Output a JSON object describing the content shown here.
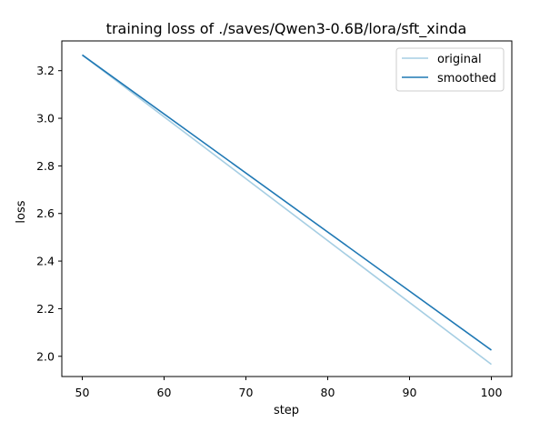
{
  "chart_data": {
    "type": "line",
    "title": "training loss of ./saves/Qwen3-0.6B/lora/sft_xinda",
    "xlabel": "step",
    "ylabel": "loss",
    "xlim": [
      47.5,
      102.5
    ],
    "ylim": [
      1.915,
      3.325
    ],
    "xticks": [
      50,
      60,
      70,
      80,
      90,
      100
    ],
    "yticks": [
      2.0,
      2.2,
      2.4,
      2.6,
      2.8,
      3.0,
      3.2
    ],
    "grid": false,
    "legend_position": "top-right",
    "series": [
      {
        "name": "original",
        "color": "#a6cee3",
        "x": [
          50,
          100
        ],
        "y": [
          3.266,
          1.966
        ]
      },
      {
        "name": "smoothed",
        "color": "#1f78b4",
        "x": [
          50,
          100
        ],
        "y": [
          3.266,
          2.026
        ]
      }
    ]
  }
}
